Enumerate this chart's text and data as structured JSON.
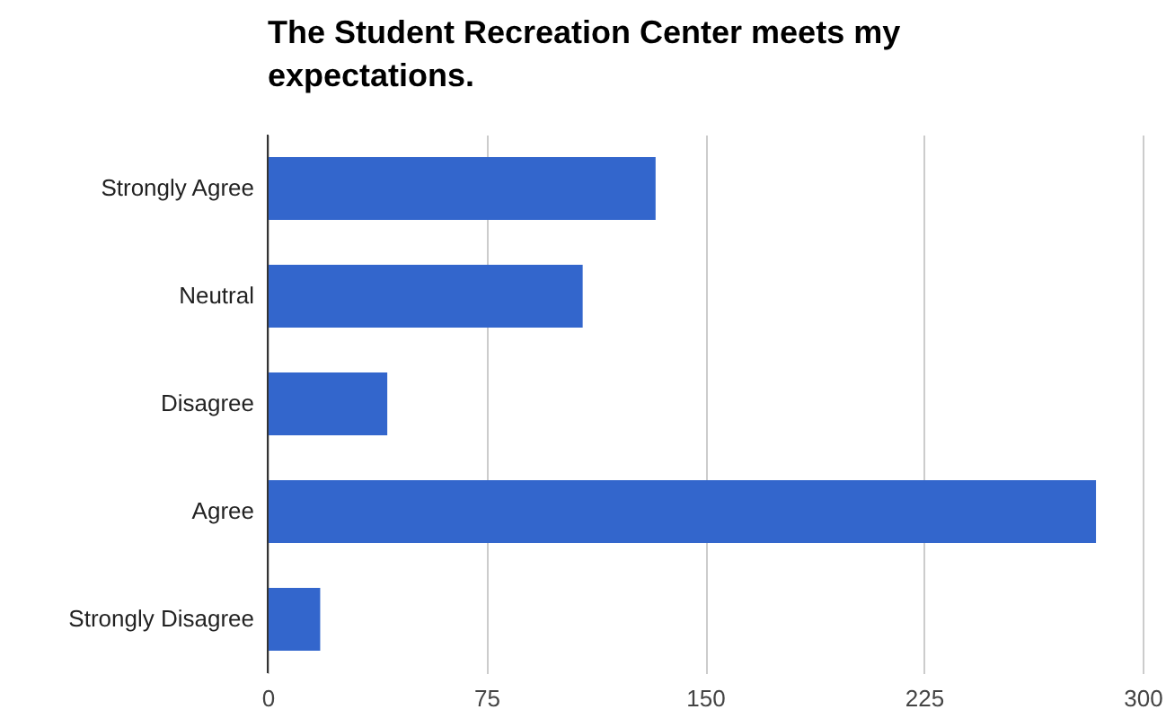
{
  "chart_data": {
    "type": "bar",
    "orientation": "horizontal",
    "title": "The Student Recreation Center meets my expectations.",
    "categories": [
      "Strongly Agree",
      "Neutral",
      "Disagree",
      "Agree",
      "Strongly Disagree"
    ],
    "values": [
      133,
      108,
      41,
      284,
      18
    ],
    "color": "#3366cc",
    "xlim": [
      0,
      300
    ],
    "xticks": [
      0,
      75,
      150,
      225,
      300
    ],
    "grid": "x"
  }
}
